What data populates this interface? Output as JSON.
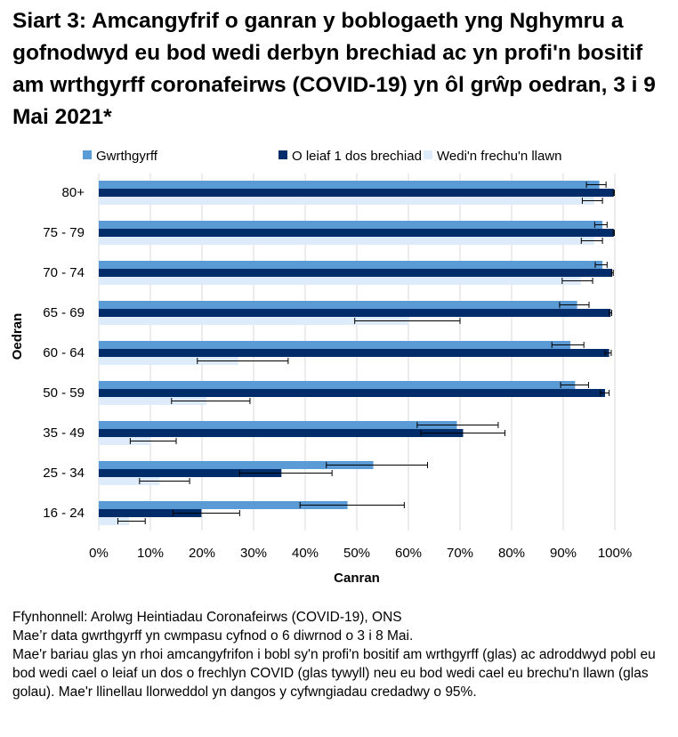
{
  "chart_data": {
    "type": "bar",
    "orientation": "horizontal",
    "title": "Siart 3: Amcangyfrif o ganran y boblogaeth yng Nghymru a gofnodwyd eu bod wedi derbyn brechiad ac yn profi'n bositif am wrthgyrff coronafeirws (COVID-19) yn ôl grŵp oedran, 3 i 9 Mai 2021*",
    "xlabel": "Canran",
    "ylabel": "Oedran",
    "xlim": [
      0,
      100
    ],
    "xticks": [
      "0%",
      "10%",
      "20%",
      "30%",
      "40%",
      "50%",
      "60%",
      "70%",
      "80%",
      "90%",
      "100%"
    ],
    "grid": "vertical",
    "legend": "top",
    "categories": [
      "80+",
      "75 - 79",
      "70 - 74",
      "65 - 69",
      "60 - 64",
      "50 - 59",
      "35 - 49",
      "25 - 34",
      "16 - 24"
    ],
    "series": [
      {
        "name": "Gwrthgyrff",
        "color": "#5b9bd5",
        "values": [
          97.0,
          97.6,
          97.6,
          92.7,
          91.4,
          92.3,
          69.4,
          53.2,
          48.2
        ],
        "ci_low": [
          94.5,
          96.1,
          96.2,
          89.3,
          87.8,
          89.5,
          61.7,
          44.1,
          39.0
        ],
        "ci_high": [
          98.3,
          98.5,
          98.5,
          95.0,
          94.0,
          94.9,
          77.4,
          63.7,
          59.2
        ]
      },
      {
        "name": "O leiaf 1 dos brechiad",
        "color": "#002d6a",
        "values": [
          99.8,
          99.8,
          99.5,
          99.2,
          98.9,
          98.1,
          70.6,
          35.4,
          19.9
        ],
        "ci_low": [
          99.7,
          99.7,
          99.4,
          98.9,
          98.1,
          97.2,
          62.4,
          27.3,
          14.4
        ],
        "ci_high": [
          99.9,
          99.9,
          99.7,
          99.4,
          99.3,
          98.9,
          78.7,
          45.2,
          27.3
        ]
      },
      {
        "name": "Wedi'n frechu'n llawn",
        "color": "#deebfb",
        "values": [
          96.0,
          96.0,
          93.4,
          60.2,
          27.1,
          20.9,
          10.0,
          11.8,
          5.9
        ],
        "ci_low": [
          93.7,
          93.5,
          89.8,
          49.6,
          19.1,
          14.1,
          6.1,
          7.9,
          3.7
        ],
        "ci_high": [
          97.6,
          97.6,
          95.7,
          70.0,
          36.7,
          29.3,
          15.0,
          17.6,
          9.0
        ]
      }
    ]
  },
  "notes": [
    "Ffynhonnell: Arolwg Heintiadau Coronafeirws (COVID-19), ONS",
    "Mae’r data gwrthgyrff yn cwmpasu cyfnod o 6 diwrnod o 3 i 8 Mai.",
    "Mae'r bariau glas yn rhoi amcangyfrifon i bobl sy'n profi'n bositif am wrthgyrff (glas) ac adroddwyd pobl eu bod wedi cael o leiaf un dos o frechlyn COVID (glas tywyll) neu eu bod wedi cael eu brechu'n llawn (glas golau).  Mae'r llinellau llorweddol yn dangos y cyfwngiadau credadwy o 95%."
  ]
}
